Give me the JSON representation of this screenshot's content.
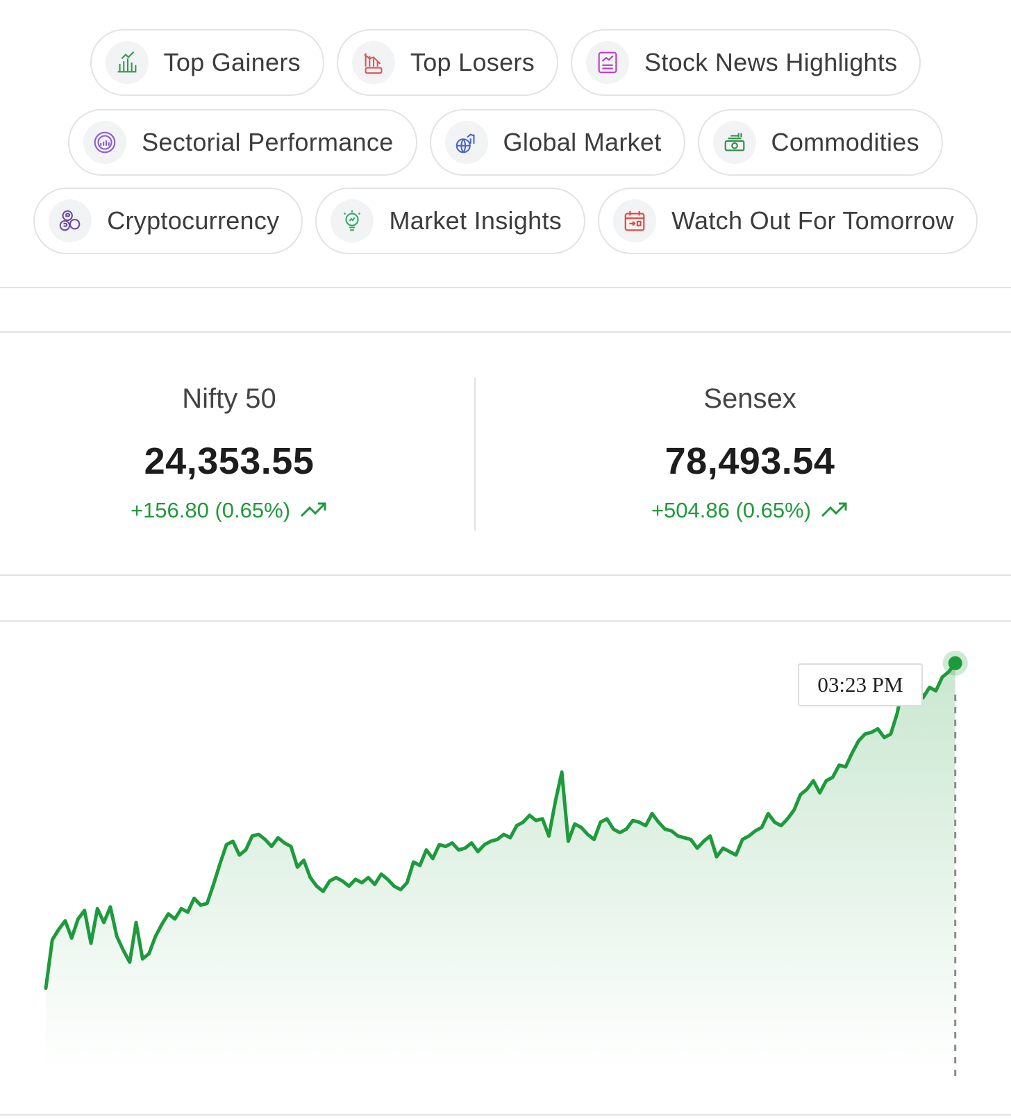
{
  "nav_chips": [
    {
      "label": "Top Gainers",
      "icon": "top-gainers-icon",
      "color": "#2e9b4f"
    },
    {
      "label": "Top Losers",
      "icon": "top-losers-icon",
      "color": "#e05555"
    },
    {
      "label": "Stock News Highlights",
      "icon": "news-highlights-icon",
      "color": "#b63cc7"
    },
    {
      "label": "Sectorial Performance",
      "icon": "sector-performance-icon",
      "color": "#8a5cd6"
    },
    {
      "label": "Global Market",
      "icon": "global-market-icon",
      "color": "#4a63c9"
    },
    {
      "label": "Commodities",
      "icon": "commodities-icon",
      "color": "#2e8b46"
    },
    {
      "label": "Cryptocurrency",
      "icon": "cryptocurrency-icon",
      "color": "#6b4aa5"
    },
    {
      "label": "Market Insights",
      "icon": "market-insights-icon",
      "color": "#2eaa6a"
    },
    {
      "label": "Watch Out For Tomorrow",
      "icon": "calendar-icon",
      "color": "#e0473f"
    }
  ],
  "indices": [
    {
      "name": "Nifty 50",
      "value": "24,353.55",
      "change": "+156.80 (0.65%)"
    },
    {
      "name": "Sensex",
      "value": "78,493.54",
      "change": "+504.86 (0.65%)"
    }
  ],
  "colors": {
    "positive": "#1f9a3b",
    "line": "#1e9a3c"
  },
  "chart_data": {
    "type": "area",
    "tooltip_time": "03:23 PM",
    "values": [
      0,
      28,
      34,
      39,
      29,
      40,
      45,
      26,
      46,
      38,
      47,
      30,
      22,
      15,
      38,
      17,
      20,
      30,
      37,
      43,
      40,
      46,
      44,
      52,
      48,
      49,
      60,
      72,
      83,
      85,
      77,
      80,
      88,
      89,
      86,
      82,
      87,
      84,
      82,
      70,
      74,
      64,
      59,
      56,
      62,
      64,
      62,
      59,
      63,
      61,
      64,
      60,
      66,
      63,
      59,
      57,
      61,
      73,
      71,
      80,
      75,
      83,
      82,
      84,
      80,
      81,
      84,
      79,
      83,
      85,
      86,
      89,
      87,
      94,
      96,
      100,
      97,
      98,
      88,
      108,
      125,
      85,
      95,
      93,
      89,
      86,
      96,
      98,
      92,
      90,
      92,
      97,
      96,
      94,
      101,
      96,
      92,
      91,
      88,
      87,
      86,
      81,
      85,
      88,
      76,
      81,
      79,
      77,
      86,
      88,
      91,
      93,
      101,
      96,
      94,
      98,
      103,
      112,
      115,
      120,
      113,
      120,
      122,
      129,
      128,
      136,
      143,
      147,
      148,
      150,
      145,
      147,
      159,
      177,
      181,
      178,
      168,
      174,
      172,
      180,
      183,
      188
    ],
    "xlim": [
      0,
      142
    ],
    "ylim": [
      -15,
      210
    ],
    "highlight_index": 141
  }
}
